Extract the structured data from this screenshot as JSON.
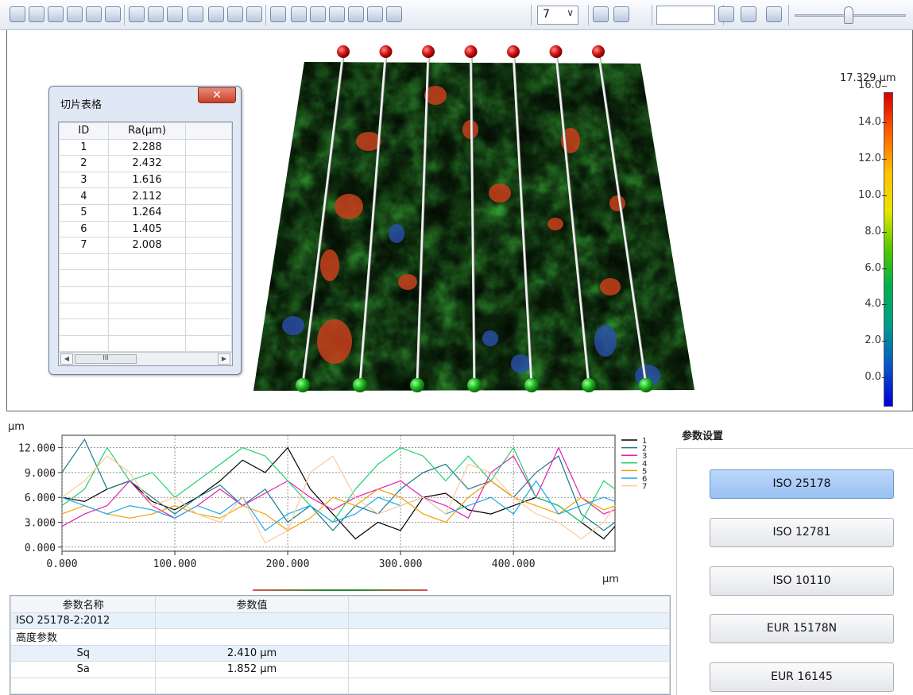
{
  "toolbar": {
    "line_count": "7",
    "value_input": "",
    "icons": [
      "3d-view-icon",
      "fit-view-icon",
      "cube-front-icon",
      "cube-top-icon",
      "cube-side-icon",
      "cube-iso-icon",
      "grid-palette-icon",
      "bars-icon",
      "frame-icon",
      "axis-icon",
      "level-icon",
      "hatch-icon",
      "palette-icon",
      "line-profile-icon",
      "vertical-profile-icon",
      "diagonal-profile-icon",
      "cross-profile-icon",
      "circle-profile-icon",
      "parallel-h-icon",
      "parallel-v-icon",
      "combo-dropdown-icon",
      "delete-icon",
      "clear-all-icon",
      "confirm-icon",
      "scale-100-icon",
      "fit-height-icon",
      "slider-icon"
    ],
    "colors": {
      "bg_top": "#fbfcfe",
      "bg_bottom": "#e3e9f2"
    }
  },
  "viewport": {
    "colorbar": {
      "max_label": "17.329 µm",
      "ticks": [
        "16.0",
        "14.0",
        "12.0",
        "10.0",
        "8.0",
        "6.0",
        "4.0",
        "2.0",
        "0.0"
      ]
    }
  },
  "slice_window": {
    "title": "切片表格",
    "close_label": "✕",
    "columns": [
      "ID",
      "Ra(µm)",
      ""
    ],
    "rows": [
      [
        "1",
        "2.288",
        ""
      ],
      [
        "2",
        "2.432",
        ""
      ],
      [
        "3",
        "1.616",
        ""
      ],
      [
        "4",
        "2.112",
        ""
      ],
      [
        "5",
        "1.264",
        ""
      ],
      [
        "6",
        "1.405",
        ""
      ],
      [
        "7",
        "2.008",
        ""
      ]
    ],
    "scroll_thumb": "III"
  },
  "profile": {
    "unit_y": "µm",
    "unit_x": "µm"
  },
  "chart_data": {
    "type": "line",
    "title": "",
    "xlabel": "µm",
    "ylabel": "µm",
    "xlim": [
      0,
      490
    ],
    "ylim": [
      -0.5,
      13.5
    ],
    "x_ticks": [
      "0.000",
      "100.000",
      "200.000",
      "300.000",
      "400.000"
    ],
    "x_tick_values": [
      0,
      100,
      200,
      300,
      400
    ],
    "y_ticks": [
      "12.000",
      "9.000",
      "6.000",
      "3.000",
      "0.000"
    ],
    "y_tick_values": [
      12,
      9,
      6,
      3,
      0
    ],
    "grid": true,
    "legend": "right",
    "x": [
      0,
      20,
      40,
      60,
      80,
      100,
      120,
      140,
      160,
      180,
      200,
      220,
      240,
      260,
      280,
      300,
      320,
      340,
      360,
      380,
      400,
      420,
      440,
      460,
      480,
      490
    ],
    "series": [
      {
        "name": "1",
        "color": "#000000",
        "values": [
          6,
          5.5,
          7,
          8,
          5.5,
          4.5,
          6,
          8,
          10.5,
          9,
          12,
          7,
          4,
          1,
          3,
          2,
          6,
          6.5,
          4.5,
          4,
          5,
          6,
          5,
          3,
          1,
          2.5
        ]
      },
      {
        "name": "2",
        "color": "#1a7a8a",
        "values": [
          9,
          13,
          7,
          8,
          6,
          4,
          6,
          7.5,
          5,
          7,
          3,
          5,
          2,
          5,
          4,
          7,
          9,
          10,
          7,
          8,
          6,
          9,
          11,
          4,
          2,
          3
        ]
      },
      {
        "name": "3",
        "color": "#e020b0",
        "values": [
          2.5,
          4,
          5,
          8,
          5,
          3.5,
          5,
          7,
          5,
          6.5,
          8,
          6,
          4.5,
          6,
          7,
          8,
          6,
          5,
          3.5,
          9,
          11,
          6,
          12,
          6,
          4,
          4.5
        ]
      },
      {
        "name": "4",
        "color": "#20d070",
        "values": [
          5,
          7,
          12,
          8,
          9,
          6,
          8,
          10,
          12,
          11,
          8,
          5,
          3,
          7,
          10,
          12,
          11,
          8,
          11,
          8,
          12,
          6,
          5,
          3,
          8,
          7
        ]
      },
      {
        "name": "5",
        "color": "#f0a000",
        "values": [
          4,
          5,
          4,
          3.5,
          4,
          5,
          4,
          3.5,
          5,
          4,
          2,
          3.5,
          6,
          5,
          7,
          6,
          4,
          3,
          6,
          8,
          6,
          5,
          4,
          6,
          4.5,
          5
        ]
      },
      {
        "name": "6",
        "color": "#1ea8e8",
        "values": [
          6,
          5,
          4,
          5,
          4.5,
          3.5,
          5,
          4,
          6,
          2,
          4,
          5,
          3,
          4,
          6,
          5,
          6,
          4,
          5,
          6,
          4,
          8,
          4,
          5,
          6,
          5.5
        ]
      },
      {
        "name": "7",
        "color": "#ffc89a",
        "values": [
          6,
          8,
          11,
          9,
          5,
          6,
          4,
          3,
          6,
          0.5,
          2,
          9,
          11,
          6,
          4,
          5,
          6,
          4,
          10,
          9,
          6,
          4,
          3,
          1,
          3,
          5
        ]
      }
    ]
  },
  "params_panel": {
    "title": "参数设置",
    "standards": [
      "ISO 25178",
      "ISO 12781",
      "ISO 10110",
      "EUR 15178N",
      "EUR 16145"
    ],
    "active": 0
  },
  "param_table": {
    "columns": [
      "参数名称",
      "参数值",
      ""
    ],
    "rows": [
      {
        "name": "ISO 25178-2:2012",
        "value": "",
        "indent": false
      },
      {
        "name": "高度参数",
        "value": "",
        "indent": false
      },
      {
        "name": "Sq",
        "value": "2.410 µm",
        "indent": true
      },
      {
        "name": "Sa",
        "value": "1.852 µm",
        "indent": true
      },
      {
        "name": "",
        "value": "",
        "indent": false
      }
    ]
  }
}
